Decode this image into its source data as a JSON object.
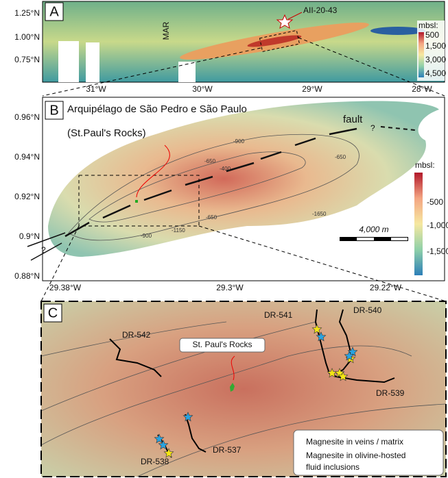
{
  "panel_a": {
    "letter": "A",
    "ridge_label": "MAR",
    "sample": "AII-20-43",
    "y_labels": [
      "1.25°N",
      "1.00°N",
      "0.75°N"
    ],
    "x_labels": [
      "31°W",
      "30°W",
      "29°W",
      "28°W"
    ],
    "legend": {
      "title": "mbsl:",
      "labels": [
        "500",
        "1,500",
        "3,000",
        "4,500"
      ]
    }
  },
  "panel_b": {
    "letter": "B",
    "title_lines": [
      "Arquipélago de São Pedro e São Paulo",
      "(St.Paul's Rocks)"
    ],
    "fault": "fault",
    "unknown": [
      "?",
      "?"
    ],
    "y_labels": [
      "0.96°N",
      "0.94°N",
      "0.92°N",
      "0.9°N",
      "0.88°N"
    ],
    "x_labels": [
      "29.38°W",
      "29.3°W",
      "29.22°W"
    ],
    "contours": [
      "-900",
      "-400",
      "-650",
      "-650",
      "-1150",
      "-900",
      "-650",
      "-1650"
    ],
    "legend": {
      "title": "mbsl:",
      "labels": [
        "-500",
        "-1,000",
        "-1,500"
      ]
    },
    "scale": "4,000 m"
  },
  "panel_c": {
    "letter": "C",
    "dredges": [
      "DR-541",
      "DR-540",
      "DR-542",
      "DR-539",
      "DR-537",
      "DR-538"
    ],
    "island": "St. Paul's Rocks",
    "legend": [
      "Magnesite in veins / matrix",
      "Magnesite in olivine-hosted fluid inclusions"
    ]
  }
}
